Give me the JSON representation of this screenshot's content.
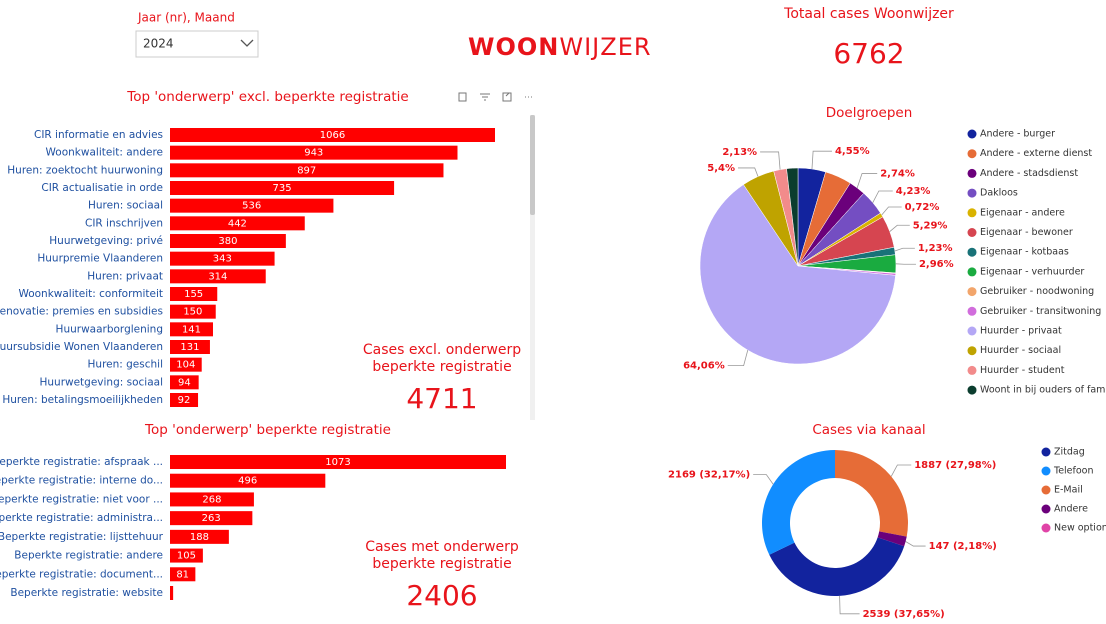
{
  "filter": {
    "label": "Jaar (nr), Maand",
    "value": "2024"
  },
  "logo": {
    "bold": "WOON",
    "rest": "WIJZER"
  },
  "kpis": [
    {
      "title": "Totaal cases Woonwijzer",
      "value": 6762
    },
    {
      "title": "Cases excl. onderwerp beperkte registratie",
      "value": 4711
    },
    {
      "title": "Cases met onderwerp beperkte registratie",
      "value": 2406
    }
  ],
  "chart_data": [
    {
      "type": "hbar",
      "title": "Top 'onderwerp' excl. beperkte registratie",
      "color": "#ff0000",
      "categories": [
        "CIR informatie en advies",
        "Woonkwaliteit: andere",
        "Huren: zoektocht huurwoning",
        "CIR actualisatie in orde",
        "Huren: sociaal",
        "CIR inschrijven",
        "Huurwetgeving: privé",
        "Huurpremie Vlaanderen",
        "Huren: privaat",
        "Woonkwaliteit: conformiteit",
        "Renovatie: premies en subsidies",
        "Huurwaarborglening",
        "Huursubsidie Wonen Vlaanderen",
        "Huren: geschil",
        "Huurwetgeving: sociaal",
        "Huren: betalingsmoeilijkheden"
      ],
      "values": [
        1066,
        943,
        897,
        735,
        536,
        442,
        380,
        343,
        314,
        155,
        150,
        141,
        131,
        104,
        94,
        92
      ]
    },
    {
      "type": "hbar",
      "title": "Top 'onderwerp' beperkte registratie",
      "color": "#ff0000",
      "categories": [
        "Beperkte registratie: afspraak ...",
        "Beperkte registratie: interne do...",
        "Beperkte registratie: niet voor ...",
        "Beperkte registratie: administra...",
        "Beperkte registratie: lijsttehuur",
        "Beperkte registratie: andere",
        "Beperkte registratie: document...",
        "Beperkte registratie: website"
      ],
      "values": [
        1073,
        496,
        268,
        263,
        188,
        105,
        81,
        10
      ]
    },
    {
      "type": "pie",
      "title": "Doelgroepen",
      "categories": [
        "Andere - burger",
        "Andere - externe dienst",
        "Andere - stadsdienst",
        "Dakloos",
        "Eigenaar - andere",
        "Eigenaar - bewoner",
        "Eigenaar - kotbaas",
        "Eigenaar - verhuurder",
        "Gebruiker - noodwoning",
        "Gebruiker - transitwoning",
        "Huurder - privaat",
        "Huurder - sociaal",
        "Huurder - student",
        "Woont in bij ouders of familie"
      ],
      "colors": [
        "#12239e",
        "#e66c37",
        "#6b007b",
        "#744ec2",
        "#d9b300",
        "#d64550",
        "#197278",
        "#1aab40",
        "#f2a56b",
        "#d16ddc",
        "#b4a7f5",
        "#bfa300",
        "#f28b8b",
        "#0b3d2e"
      ],
      "values": [
        4.55,
        4.4,
        2.74,
        4.23,
        0.72,
        5.29,
        1.23,
        2.96,
        0.1,
        0.3,
        64.06,
        5.4,
        2.13,
        1.86
      ],
      "value_labels": [
        "4,55%",
        null,
        "2,74%",
        "4,23%",
        "0,72%",
        "5,29%",
        "1,23%",
        "2,96%",
        null,
        null,
        "64,06%",
        "5,4%",
        "2,13%",
        null
      ]
    },
    {
      "type": "donut",
      "title": "Cases via kanaal",
      "categories": [
        "Zitdag",
        "Telefoon",
        "E-Mail",
        "Andere",
        "New option"
      ],
      "colors": [
        "#12239e",
        "#118dff",
        "#e66c37",
        "#6b007b",
        "#e044a7"
      ],
      "values": [
        2539,
        2169,
        1887,
        147,
        0
      ],
      "value_labels": [
        "2539 (37,65%)",
        "2169 (32,17%)",
        "1887 (27,98%)",
        "147 (2,18%)",
        null
      ]
    }
  ]
}
